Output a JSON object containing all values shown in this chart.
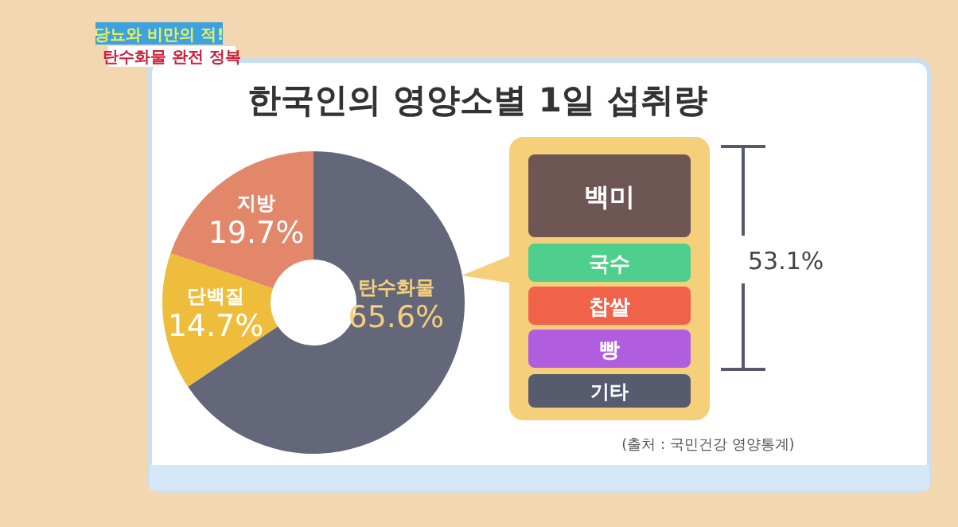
{
  "chart_data": {
    "type": "donut",
    "title": "한국인의 영양소별 1일 섭취량",
    "categories": [
      "탄수화물",
      "단백질",
      "지방"
    ],
    "values": [
      65.6,
      14.7,
      19.7
    ],
    "colors": [
      "#646779",
      "#efbd3c",
      "#e3876a"
    ],
    "value_labels": [
      "65.6%",
      "14.7%",
      "19.7%"
    ],
    "annotations": [
      "당뇨와 비만의 적!",
      "탄수화물 완전 정복",
      "백미",
      "국수",
      "찹쌀",
      "빵",
      "기타",
      "53.1%",
      "(출처 : 국민건강 영양통계)"
    ]
  }
}
